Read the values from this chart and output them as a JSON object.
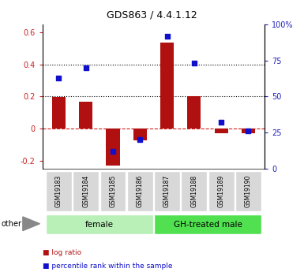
{
  "title": "GDS863 / 4.4.1.12",
  "samples": [
    "GSM19183",
    "GSM19184",
    "GSM19185",
    "GSM19186",
    "GSM19187",
    "GSM19188",
    "GSM19189",
    "GSM19190"
  ],
  "log_ratio": [
    0.195,
    0.17,
    -0.23,
    -0.075,
    0.535,
    0.2,
    -0.028,
    -0.028
  ],
  "percentile_rank": [
    63,
    70,
    12,
    20,
    92,
    73,
    32,
    26
  ],
  "groups": [
    {
      "label": "female",
      "start": 0,
      "end": 4,
      "color": "#b8f0b8"
    },
    {
      "label": "GH-treated male",
      "start": 4,
      "end": 8,
      "color": "#50e050"
    }
  ],
  "ylim_left": [
    -0.25,
    0.65
  ],
  "ylim_right": [
    0,
    100
  ],
  "yticks_left": [
    -0.2,
    0.0,
    0.2,
    0.4,
    0.6
  ],
  "yticks_right": [
    0,
    25,
    50,
    75,
    100
  ],
  "ytick_labels_left": [
    "-0.2",
    "0",
    "0.2",
    "0.4",
    "0.6"
  ],
  "ytick_labels_right": [
    "0",
    "25",
    "50",
    "75",
    "100%"
  ],
  "bar_color": "#b01010",
  "dot_color": "#1010cc",
  "hline_y": 0.0,
  "dotted_lines": [
    0.2,
    0.4
  ],
  "background_color": "#ffffff",
  "left_axis_color": "#cc2222",
  "right_axis_color": "#2222bb",
  "legend_log_ratio": "log ratio",
  "legend_percentile": "percentile rank within the sample",
  "other_label": "other"
}
